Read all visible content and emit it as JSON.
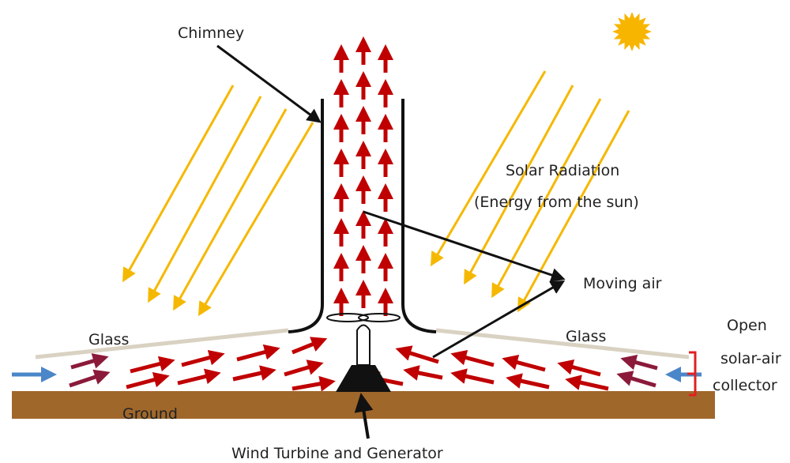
{
  "labels": {
    "chimney": "Chimney",
    "solar_radiation": "Solar Radiation",
    "energy": "(Energy from the sun)",
    "moving_air": "Moving air",
    "glass_left": "Glass",
    "glass_right": "Glass",
    "open": "Open",
    "solar_air": "solar-air",
    "collector": "collector",
    "ground": "Ground",
    "turbine": "Wind Turbine and Generator"
  }
}
